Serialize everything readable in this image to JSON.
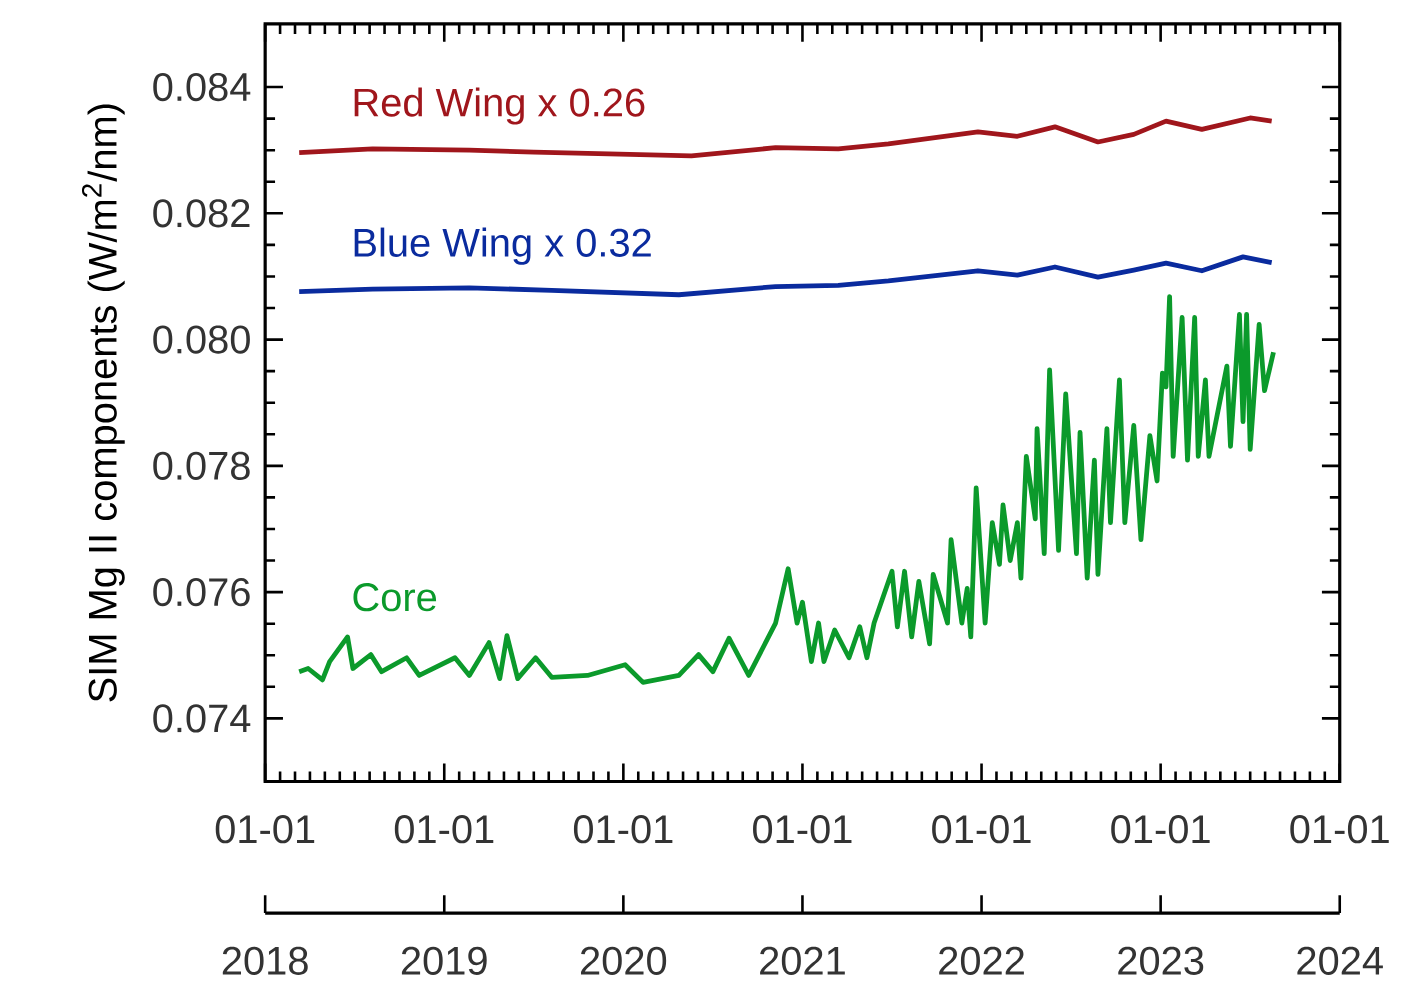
{
  "chart_data": {
    "type": "line",
    "ylabel": "SIM Mg II components (W/m$^{2}$/nm)",
    "xlim": [
      2018,
      2024
    ],
    "x2ticks": [
      {
        "value": "2018-01-01",
        "label": "01-01"
      },
      {
        "value": "2019-01-01",
        "label": "01-01"
      },
      {
        "value": "2020-01-01",
        "label": "01-01"
      },
      {
        "value": "2021-01-01",
        "label": "01-01"
      },
      {
        "value": "2022-01-01",
        "label": "01-01"
      },
      {
        "value": "2023-01-01",
        "label": "01-01"
      },
      {
        "value": "2024-01-01",
        "label": "01-01"
      }
    ],
    "x2lim": [
      "2018-01-01",
      "2024-01-01"
    ],
    "xticks": [
      2018,
      2019,
      2020,
      2021,
      2022,
      2023,
      2024
    ],
    "ylim": [
      0.073,
      0.085
    ],
    "yticks": [
      0.074,
      0.076,
      0.078,
      {
        "value": 0.08,
        "label": "0.080"
      },
      0.082,
      0.084
    ],
    "grid": false,
    "legend": false,
    "line_style": "solid",
    "series": [
      {
        "name": "Red Wing x 0.26",
        "color": "#a0161c",
        "x": [
          2018.19,
          2018.6,
          2019.14,
          2019.5,
          2019.92,
          2020.38,
          2020.85,
          2021.2,
          2021.48,
          2021.98,
          2022.2,
          2022.41,
          2022.65,
          2022.85,
          2023.03,
          2023.23,
          2023.5,
          2023.62
        ],
        "values": [
          0.08296,
          0.08302,
          0.083,
          0.08297,
          0.08294,
          0.08291,
          0.08304,
          0.08302,
          0.0831,
          0.08329,
          0.08322,
          0.08337,
          0.08313,
          0.08325,
          0.08346,
          0.08333,
          0.08351,
          0.08346
        ]
      },
      {
        "name": "Blue Wing x 0.32",
        "color": "#0a2b9e",
        "x": [
          2018.19,
          2018.6,
          2019.14,
          2019.6,
          2020.31,
          2020.85,
          2021.2,
          2021.48,
          2021.98,
          2022.2,
          2022.41,
          2022.65,
          2022.85,
          2023.03,
          2023.23,
          2023.46,
          2023.62
        ],
        "values": [
          0.08076,
          0.0808,
          0.08082,
          0.08078,
          0.08071,
          0.08084,
          0.08086,
          0.08093,
          0.08109,
          0.08102,
          0.08115,
          0.08099,
          0.0811,
          0.08121,
          0.08109,
          0.08131,
          0.08122
        ]
      },
      {
        "name": "Core",
        "color": "#0b9a2b",
        "x": [
          2018.19,
          2018.24,
          2018.32,
          2018.36,
          2018.46,
          2018.49,
          2018.59,
          2018.65,
          2018.79,
          2018.86,
          2019.06,
          2019.14,
          2019.25,
          2019.31,
          2019.35,
          2019.41,
          2019.51,
          2019.6,
          2019.8,
          2020.01,
          2020.11,
          2020.31,
          2020.42,
          2020.5,
          2020.59,
          2020.7,
          2020.85,
          2020.92,
          2020.97,
          2021.0,
          2021.05,
          2021.09,
          2021.12,
          2021.18,
          2021.26,
          2021.32,
          2021.36,
          2021.4,
          2021.5,
          2021.53,
          2021.57,
          2021.61,
          2021.65,
          2021.71,
          2021.73,
          2021.81,
          2021.83,
          2021.89,
          2021.92,
          2021.94,
          2021.97,
          2022.02,
          2022.06,
          2022.1,
          2022.12,
          2022.16,
          2022.2,
          2022.22,
          2022.25,
          2022.3,
          2022.31,
          2022.35,
          2022.38,
          2022.43,
          2022.47,
          2022.53,
          2022.55,
          2022.59,
          2022.63,
          2022.65,
          2022.7,
          2022.72,
          2022.77,
          2022.8,
          2022.85,
          2022.89,
          2022.94,
          2022.98,
          2023.01,
          2023.03,
          2023.05,
          2023.07,
          2023.12,
          2023.15,
          2023.19,
          2023.21,
          2023.25,
          2023.27,
          2023.37,
          2023.39,
          2023.44,
          2023.46,
          2023.48,
          2023.5,
          2023.55,
          2023.58,
          2023.63
        ],
        "values": [
          0.07474,
          0.07479,
          0.07461,
          0.0749,
          0.07529,
          0.07479,
          0.07501,
          0.07474,
          0.07496,
          0.07468,
          0.07496,
          0.07468,
          0.0752,
          0.07463,
          0.07531,
          0.07463,
          0.07496,
          0.07465,
          0.07468,
          0.07485,
          0.07457,
          0.07468,
          0.07501,
          0.07474,
          0.07527,
          0.07468,
          0.07551,
          0.07637,
          0.07551,
          0.07584,
          0.0749,
          0.07551,
          0.0749,
          0.0754,
          0.07496,
          0.07545,
          0.07496,
          0.07551,
          0.07633,
          0.07545,
          0.07633,
          0.07529,
          0.07617,
          0.07518,
          0.07628,
          0.07551,
          0.07683,
          0.07551,
          0.07606,
          0.07529,
          0.07765,
          0.07551,
          0.0771,
          0.07644,
          0.07738,
          0.0765,
          0.0771,
          0.07622,
          0.07815,
          0.07716,
          0.07859,
          0.07661,
          0.07952,
          0.07666,
          0.07914,
          0.07661,
          0.07853,
          0.07622,
          0.07809,
          0.07628,
          0.07859,
          0.0771,
          0.07936,
          0.0771,
          0.07864,
          0.07683,
          0.07848,
          0.07776,
          0.07947,
          0.07925,
          0.08068,
          0.07815,
          0.08035,
          0.07809,
          0.08035,
          0.07815,
          0.07936,
          0.07815,
          0.07958,
          0.07831,
          0.0804,
          0.0787,
          0.0804,
          0.07826,
          0.08024,
          0.07919,
          0.0798
        ]
      }
    ]
  }
}
